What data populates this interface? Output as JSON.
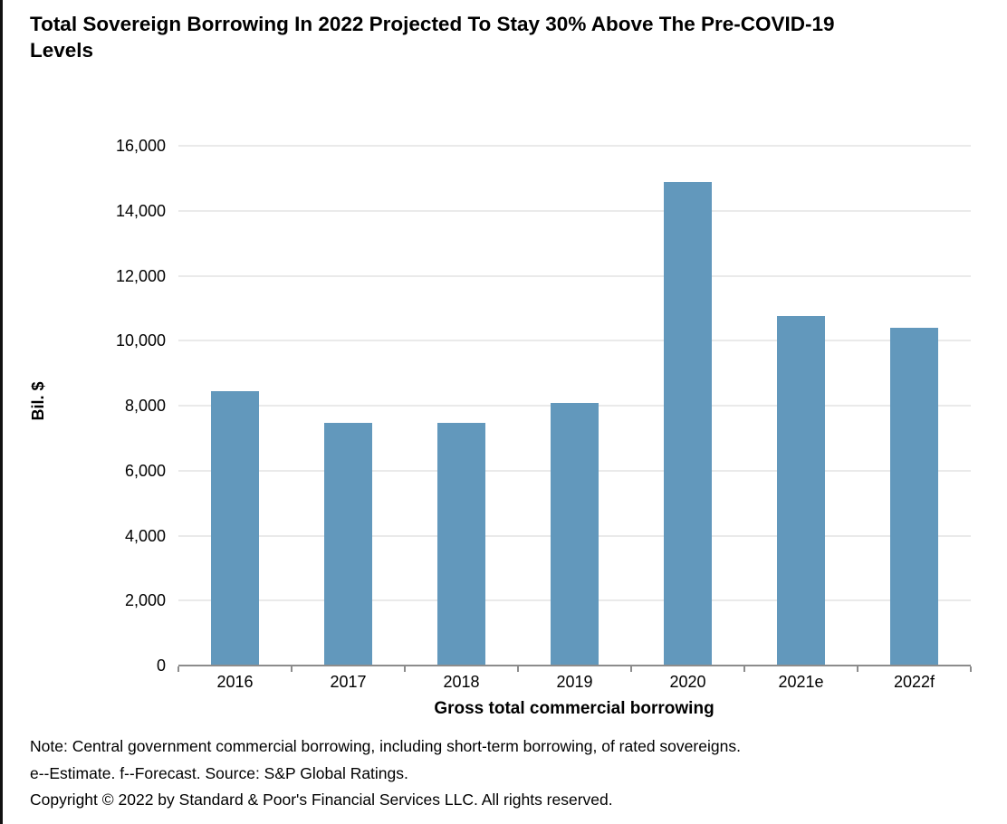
{
  "title": {
    "line1": "Total Sovereign Borrowing In 2022 Projected To Stay 30% Above The Pre-COVID-19",
    "line2": "Levels"
  },
  "chart_data": {
    "type": "bar",
    "categories": [
      "2016",
      "2017",
      "2018",
      "2019",
      "2020",
      "2021e",
      "2022f"
    ],
    "values": [
      8440,
      7460,
      7460,
      8070,
      14890,
      10750,
      10400
    ],
    "title": "Total Sovereign Borrowing In 2022 Projected To Stay 30% Above The Pre-COVID-19 Levels",
    "xlabel": "Gross total commercial borrowing",
    "ylabel": "Bil. $",
    "ylim": [
      0,
      16000
    ],
    "ytick_interval": 2000,
    "ytick_labels": [
      "0",
      "2,000",
      "4,000",
      "6,000",
      "8,000",
      "10,000",
      "12,000",
      "14,000",
      "16,000"
    ],
    "grid": true,
    "legend": "none",
    "bar_color": "#6298BC"
  },
  "colors": {
    "bar": "#6298BC",
    "gridline": "#eaeaea",
    "axis": "#8c8c8c",
    "text": "#000000",
    "left_border": "#111111"
  },
  "notes": {
    "note": "Note: Central government commercial borrowing, including short-term borrowing, of rated sovereigns.",
    "source": "e--Estimate. f--Forecast. Source: S&P Global Ratings.",
    "copyright": "Copyright © 2022 by Standard & Poor's Financial Services LLC. All rights reserved."
  }
}
